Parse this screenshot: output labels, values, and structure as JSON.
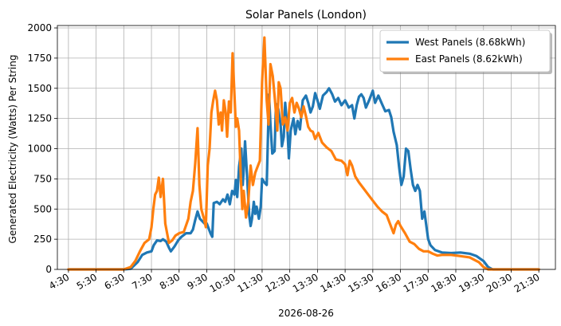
{
  "chart_data": {
    "type": "line",
    "title": "Solar Panels (London)",
    "xlabel": "2026-08-26",
    "ylabel": "Generated Electricity (Watts) Per String",
    "x_unit": "time",
    "xlim": [
      "4:06",
      "22:06"
    ],
    "ylim": [
      0,
      2020
    ],
    "x_ticks": [
      "4:30",
      "5:30",
      "6:30",
      "7:30",
      "8:30",
      "9:30",
      "10:30",
      "11:30",
      "12:30",
      "13:30",
      "14:30",
      "15:30",
      "16:30",
      "17:30",
      "18:30",
      "19:30",
      "20:30",
      "21:30"
    ],
    "y_ticks": [
      0,
      250,
      500,
      750,
      1000,
      1250,
      1500,
      1750,
      2000
    ],
    "grid": true,
    "legend_position": "top-right",
    "series": [
      {
        "name": "West Panels (8.68kWh)",
        "color": "#1f77b4",
        "points": [
          [
            "4:30",
            0
          ],
          [
            "6:30",
            0
          ],
          [
            "6:45",
            5
          ],
          [
            "7:00",
            60
          ],
          [
            "7:10",
            120
          ],
          [
            "7:20",
            140
          ],
          [
            "7:30",
            150
          ],
          [
            "7:35",
            200
          ],
          [
            "7:42",
            240
          ],
          [
            "7:50",
            235
          ],
          [
            "7:55",
            250
          ],
          [
            "8:02",
            230
          ],
          [
            "8:08",
            180
          ],
          [
            "8:12",
            150
          ],
          [
            "8:20",
            190
          ],
          [
            "8:28",
            240
          ],
          [
            "8:35",
            270
          ],
          [
            "8:45",
            300
          ],
          [
            "8:55",
            300
          ],
          [
            "9:00",
            330
          ],
          [
            "9:05",
            410
          ],
          [
            "9:10",
            480
          ],
          [
            "9:15",
            420
          ],
          [
            "9:25",
            380
          ],
          [
            "9:30",
            380
          ],
          [
            "9:38",
            300
          ],
          [
            "9:42",
            270
          ],
          [
            "9:45",
            550
          ],
          [
            "9:52",
            560
          ],
          [
            "9:58",
            540
          ],
          [
            "10:05",
            580
          ],
          [
            "10:10",
            560
          ],
          [
            "10:15",
            620
          ],
          [
            "10:20",
            540
          ],
          [
            "10:25",
            650
          ],
          [
            "10:30",
            620
          ],
          [
            "10:33",
            740
          ],
          [
            "10:36",
            600
          ],
          [
            "10:40",
            850
          ],
          [
            "10:45",
            1000
          ],
          [
            "10:48",
            700
          ],
          [
            "10:50",
            820
          ],
          [
            "10:53",
            1060
          ],
          [
            "10:57",
            800
          ],
          [
            "11:02",
            450
          ],
          [
            "11:05",
            360
          ],
          [
            "11:08",
            420
          ],
          [
            "11:12",
            560
          ],
          [
            "11:15",
            460
          ],
          [
            "11:18",
            520
          ],
          [
            "11:23",
            420
          ],
          [
            "11:27",
            520
          ],
          [
            "11:30",
            750
          ],
          [
            "11:35",
            720
          ],
          [
            "11:40",
            700
          ],
          [
            "11:45",
            1450
          ],
          [
            "11:48",
            1200
          ],
          [
            "11:52",
            960
          ],
          [
            "11:57",
            980
          ],
          [
            "12:00",
            1370
          ],
          [
            "12:05",
            1330
          ],
          [
            "12:10",
            1200
          ],
          [
            "12:13",
            1020
          ],
          [
            "12:17",
            1100
          ],
          [
            "12:20",
            1380
          ],
          [
            "12:25",
            1150
          ],
          [
            "12:28",
            920
          ],
          [
            "12:32",
            1150
          ],
          [
            "12:38",
            1250
          ],
          [
            "12:42",
            1120
          ],
          [
            "12:47",
            1230
          ],
          [
            "12:52",
            1160
          ],
          [
            "12:58",
            1400
          ],
          [
            "13:05",
            1440
          ],
          [
            "13:10",
            1380
          ],
          [
            "13:15",
            1300
          ],
          [
            "13:20",
            1350
          ],
          [
            "13:25",
            1460
          ],
          [
            "13:30",
            1400
          ],
          [
            "13:35",
            1330
          ],
          [
            "13:42",
            1440
          ],
          [
            "13:50",
            1470
          ],
          [
            "13:55",
            1500
          ],
          [
            "14:02",
            1450
          ],
          [
            "14:08",
            1390
          ],
          [
            "14:15",
            1420
          ],
          [
            "14:22",
            1360
          ],
          [
            "14:30",
            1400
          ],
          [
            "14:38",
            1340
          ],
          [
            "14:45",
            1360
          ],
          [
            "14:50",
            1250
          ],
          [
            "14:55",
            1360
          ],
          [
            "15:00",
            1430
          ],
          [
            "15:05",
            1450
          ],
          [
            "15:10",
            1420
          ],
          [
            "15:15",
            1340
          ],
          [
            "15:22",
            1400
          ],
          [
            "15:30",
            1480
          ],
          [
            "15:35",
            1380
          ],
          [
            "15:42",
            1440
          ],
          [
            "15:50",
            1370
          ],
          [
            "15:57",
            1310
          ],
          [
            "16:05",
            1320
          ],
          [
            "16:10",
            1260
          ],
          [
            "16:15",
            1140
          ],
          [
            "16:22",
            1030
          ],
          [
            "16:27",
            850
          ],
          [
            "16:32",
            700
          ],
          [
            "16:37",
            770
          ],
          [
            "16:42",
            1000
          ],
          [
            "16:47",
            980
          ],
          [
            "16:52",
            830
          ],
          [
            "16:57",
            700
          ],
          [
            "17:02",
            650
          ],
          [
            "17:07",
            700
          ],
          [
            "17:12",
            650
          ],
          [
            "17:17",
            420
          ],
          [
            "17:22",
            480
          ],
          [
            "17:30",
            250
          ],
          [
            "17:35",
            200
          ],
          [
            "17:45",
            160
          ],
          [
            "18:00",
            140
          ],
          [
            "18:20",
            135
          ],
          [
            "18:40",
            140
          ],
          [
            "19:00",
            130
          ],
          [
            "19:15",
            110
          ],
          [
            "19:30",
            70
          ],
          [
            "19:40",
            20
          ],
          [
            "19:50",
            0
          ],
          [
            "21:30",
            0
          ]
        ]
      },
      {
        "name": "East Panels (8.62kWh)",
        "color": "#ff7f0e",
        "points": [
          [
            "4:30",
            0
          ],
          [
            "6:30",
            0
          ],
          [
            "6:45",
            20
          ],
          [
            "6:55",
            70
          ],
          [
            "7:05",
            150
          ],
          [
            "7:15",
            220
          ],
          [
            "7:25",
            250
          ],
          [
            "7:30",
            350
          ],
          [
            "7:34",
            500
          ],
          [
            "7:38",
            620
          ],
          [
            "7:42",
            650
          ],
          [
            "7:46",
            760
          ],
          [
            "7:50",
            600
          ],
          [
            "7:55",
            750
          ],
          [
            "8:00",
            380
          ],
          [
            "8:08",
            220
          ],
          [
            "8:15",
            240
          ],
          [
            "8:22",
            280
          ],
          [
            "8:30",
            300
          ],
          [
            "8:40",
            310
          ],
          [
            "8:50",
            420
          ],
          [
            "8:55",
            560
          ],
          [
            "9:00",
            650
          ],
          [
            "9:05",
            880
          ],
          [
            "9:10",
            1170
          ],
          [
            "9:14",
            700
          ],
          [
            "9:18",
            500
          ],
          [
            "9:24",
            420
          ],
          [
            "9:28",
            350
          ],
          [
            "9:32",
            860
          ],
          [
            "9:36",
            1000
          ],
          [
            "9:40",
            1300
          ],
          [
            "9:44",
            1400
          ],
          [
            "9:48",
            1480
          ],
          [
            "9:52",
            1400
          ],
          [
            "9:56",
            1200
          ],
          [
            "10:00",
            1300
          ],
          [
            "10:03",
            1150
          ],
          [
            "10:07",
            1400
          ],
          [
            "10:11",
            1300
          ],
          [
            "10:14",
            1100
          ],
          [
            "10:18",
            1390
          ],
          [
            "10:22",
            1300
          ],
          [
            "10:26",
            1790
          ],
          [
            "10:30",
            1450
          ],
          [
            "10:33",
            1180
          ],
          [
            "10:36",
            1250
          ],
          [
            "10:40",
            1150
          ],
          [
            "10:44",
            750
          ],
          [
            "10:47",
            500
          ],
          [
            "10:50",
            650
          ],
          [
            "10:55",
            430
          ],
          [
            "11:00",
            560
          ],
          [
            "11:05",
            860
          ],
          [
            "11:10",
            700
          ],
          [
            "11:15",
            800
          ],
          [
            "11:20",
            850
          ],
          [
            "11:25",
            900
          ],
          [
            "11:30",
            1550
          ],
          [
            "11:35",
            1920
          ],
          [
            "11:40",
            1400
          ],
          [
            "11:44",
            1200
          ],
          [
            "11:48",
            1700
          ],
          [
            "11:53",
            1600
          ],
          [
            "11:58",
            1400
          ],
          [
            "12:03",
            1150
          ],
          [
            "12:06",
            1550
          ],
          [
            "12:10",
            1500
          ],
          [
            "12:15",
            1200
          ],
          [
            "12:20",
            1260
          ],
          [
            "12:25",
            1150
          ],
          [
            "12:30",
            1380
          ],
          [
            "12:35",
            1420
          ],
          [
            "12:40",
            1300
          ],
          [
            "12:45",
            1380
          ],
          [
            "12:50",
            1330
          ],
          [
            "12:55",
            1260
          ],
          [
            "13:00",
            1350
          ],
          [
            "13:05",
            1270
          ],
          [
            "13:10",
            1180
          ],
          [
            "13:15",
            1150
          ],
          [
            "13:20",
            1140
          ],
          [
            "13:25",
            1080
          ],
          [
            "13:32",
            1130
          ],
          [
            "13:40",
            1050
          ],
          [
            "13:50",
            1010
          ],
          [
            "14:00",
            980
          ],
          [
            "14:10",
            910
          ],
          [
            "14:22",
            900
          ],
          [
            "14:30",
            870
          ],
          [
            "14:35",
            780
          ],
          [
            "14:40",
            900
          ],
          [
            "14:45",
            860
          ],
          [
            "14:52",
            770
          ],
          [
            "15:00",
            720
          ],
          [
            "15:10",
            670
          ],
          [
            "15:20",
            620
          ],
          [
            "15:30",
            570
          ],
          [
            "15:40",
            520
          ],
          [
            "15:50",
            480
          ],
          [
            "16:00",
            450
          ],
          [
            "16:10",
            350
          ],
          [
            "16:15",
            300
          ],
          [
            "16:20",
            370
          ],
          [
            "16:25",
            400
          ],
          [
            "16:30",
            360
          ],
          [
            "16:40",
            300
          ],
          [
            "16:50",
            230
          ],
          [
            "17:00",
            210
          ],
          [
            "17:10",
            170
          ],
          [
            "17:20",
            150
          ],
          [
            "17:30",
            150
          ],
          [
            "17:40",
            130
          ],
          [
            "17:50",
            115
          ],
          [
            "18:00",
            120
          ],
          [
            "18:20",
            120
          ],
          [
            "18:40",
            110
          ],
          [
            "19:00",
            100
          ],
          [
            "19:20",
            60
          ],
          [
            "19:30",
            20
          ],
          [
            "19:40",
            0
          ],
          [
            "21:30",
            0
          ]
        ]
      }
    ]
  }
}
